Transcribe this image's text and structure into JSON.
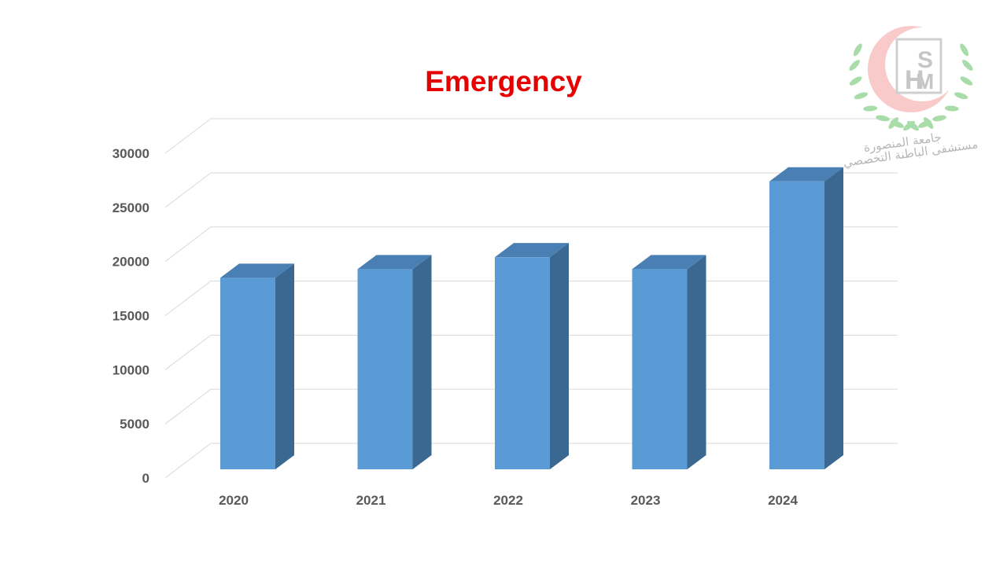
{
  "chart_data": {
    "type": "bar",
    "title": "Emergency",
    "categories": [
      "2020",
      "2021",
      "2022",
      "2023",
      "2024"
    ],
    "values": [
      17700,
      18500,
      19600,
      18500,
      26600
    ],
    "ylim": [
      0,
      30000
    ],
    "yticks": [
      "0",
      "5000",
      "10000",
      "15000",
      "20000",
      "25000",
      "30000"
    ],
    "xlabel": "",
    "ylabel": "",
    "grid": true,
    "legend": "none",
    "style": "3d-column",
    "colors": {
      "bar_front": "#5b9bd5",
      "bar_side": "#3a6891",
      "bar_top": "#4a7fb3",
      "title": "#e60000",
      "ticks": "#595959",
      "grid": "#d9d9d9"
    }
  },
  "logo": {
    "letters": [
      "H",
      "S",
      "M"
    ],
    "arabic_line1": "جامعة المنصورة",
    "arabic_line2": "مستشفى الباطنة التخصصي",
    "colors": {
      "crescent": "#f2b3b3",
      "wreath": "#a8dca8",
      "letters": "#c8c8c8"
    }
  }
}
